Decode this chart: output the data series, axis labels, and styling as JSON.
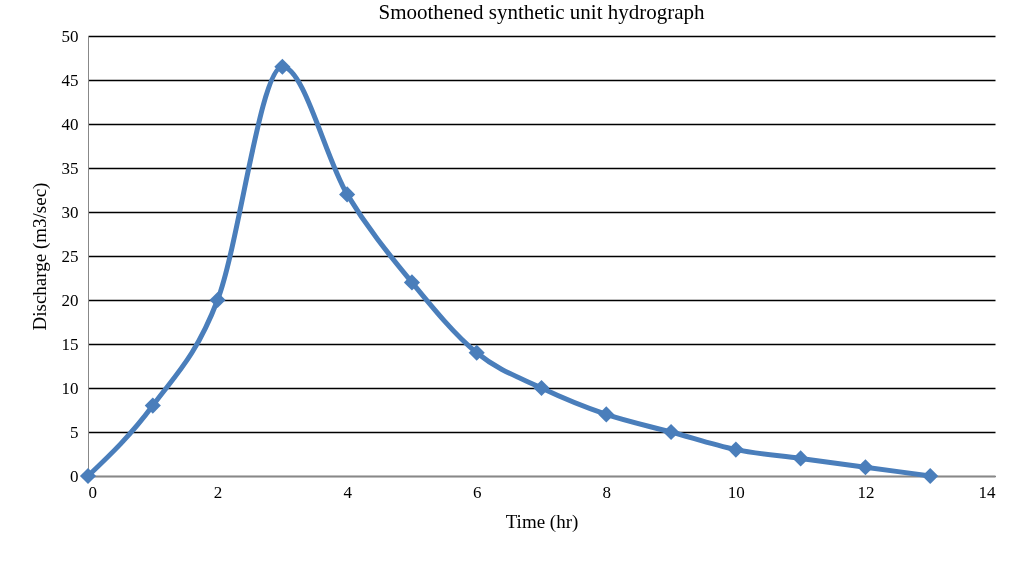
{
  "chart_data": {
    "type": "line",
    "title": "Smoothened synthetic unit hydrograph",
    "xlabel": "Time (hr)",
    "ylabel": "Discharge (m3/sec)",
    "x": [
      0,
      1,
      2,
      3,
      4,
      5,
      6,
      7,
      8,
      9,
      10,
      11,
      12,
      13
    ],
    "series": [
      {
        "color": "#4a7ebb",
        "values": [
          0,
          8,
          20,
          46.5,
          32,
          22,
          14,
          10,
          7,
          5,
          3,
          2,
          1,
          0
        ]
      }
    ],
    "xlim": [
      0,
      14
    ],
    "xticks": [
      0,
      2,
      4,
      6,
      8,
      10,
      12,
      14
    ],
    "ylim": [
      0,
      50
    ],
    "yticks": [
      0,
      5,
      10,
      15,
      20,
      25,
      30,
      35,
      40,
      45,
      50
    ],
    "grid": "y",
    "marker": "diamond",
    "line_style": "solid"
  }
}
